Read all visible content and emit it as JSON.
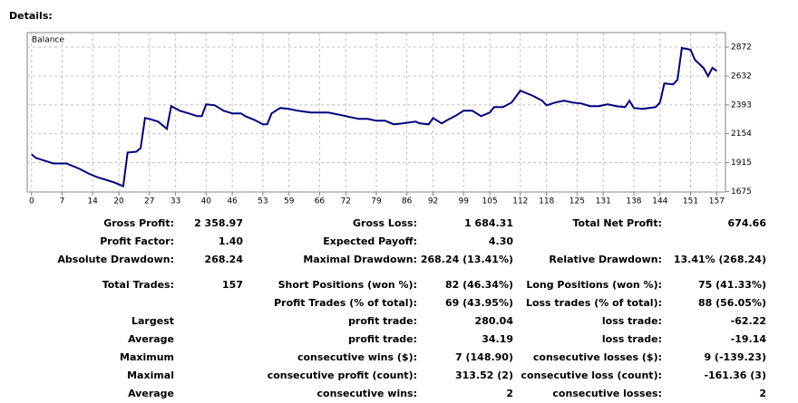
{
  "heading": "Details:",
  "chart_data": {
    "type": "line",
    "title": "Balance",
    "color": "#00007f",
    "grid": true,
    "x": [
      0,
      1,
      5,
      8,
      11,
      13,
      15,
      17,
      19,
      21,
      22,
      24,
      25,
      26,
      27,
      29,
      31,
      32,
      34,
      36,
      38,
      39,
      40,
      42,
      44,
      46,
      48,
      49,
      51,
      53,
      54,
      55,
      57,
      59,
      61,
      64,
      68,
      71,
      73,
      75,
      77,
      79,
      81,
      83,
      85,
      88,
      89,
      91,
      92,
      94,
      95,
      97,
      99,
      101,
      103,
      105,
      106,
      108,
      110,
      112,
      115,
      117,
      118,
      120,
      122,
      124,
      126,
      128,
      130,
      132,
      134,
      136,
      137,
      138,
      140,
      143,
      144,
      145,
      147,
      148,
      149,
      151,
      152,
      154,
      155,
      156,
      157
    ],
    "values": [
      1984,
      1954,
      1908,
      1908,
      1863,
      1826,
      1795,
      1773,
      1750,
      1720,
      1999,
      2006,
      2036,
      2285,
      2277,
      2255,
      2195,
      2383,
      2345,
      2323,
      2300,
      2300,
      2398,
      2390,
      2345,
      2323,
      2323,
      2300,
      2270,
      2232,
      2232,
      2323,
      2368,
      2360,
      2345,
      2330,
      2330,
      2308,
      2292,
      2277,
      2277,
      2262,
      2262,
      2232,
      2240,
      2255,
      2240,
      2232,
      2285,
      2240,
      2262,
      2300,
      2345,
      2345,
      2300,
      2330,
      2375,
      2375,
      2413,
      2511,
      2466,
      2428,
      2390,
      2413,
      2428,
      2413,
      2405,
      2383,
      2383,
      2398,
      2383,
      2375,
      2428,
      2368,
      2360,
      2375,
      2413,
      2571,
      2563,
      2601,
      2865,
      2850,
      2767,
      2699,
      2631,
      2700,
      2675
    ],
    "xlim": [
      -1,
      159
    ],
    "xticks": [
      0,
      7,
      14,
      20,
      27,
      33,
      40,
      46,
      53,
      59,
      66,
      72,
      79,
      86,
      92,
      99,
      105,
      112,
      118,
      125,
      131,
      138,
      144,
      151,
      157
    ],
    "ylim": [
      1672,
      2992
    ],
    "yticks": [
      1675,
      1915,
      2154,
      2393,
      2632,
      2872
    ]
  },
  "stats": {
    "rows": [
      [
        "Gross Profit:",
        "2 358.97",
        "Gross Loss:",
        "1 684.31",
        "Total Net Profit:",
        "674.66"
      ],
      [
        "Profit Factor:",
        "1.40",
        "Expected Payoff:",
        "4.30",
        null,
        null
      ],
      [
        "Absolute Drawdown:",
        "268.24",
        "Maximal Drawdown:",
        "268.24 (13.41%)",
        "Relative Drawdown:",
        "13.41% (268.24)"
      ],
      [
        "Total Trades:",
        "157",
        "Short Positions (won %):",
        "82 (46.34%)",
        "Long Positions (won %):",
        "75 (41.33%)"
      ],
      [
        null,
        null,
        "Profit Trades (% of total):",
        "69 (43.95%)",
        "Loss trades (% of total):",
        "88 (56.05%)"
      ],
      [
        "Largest",
        null,
        "profit trade:",
        "280.04",
        "loss trade:",
        "-62.22"
      ],
      [
        "Average",
        null,
        "profit trade:",
        "34.19",
        "loss trade:",
        "-19.14"
      ],
      [
        "Maximum",
        null,
        "consecutive wins ($):",
        "7 (148.90)",
        "consecutive losses ($):",
        "9 (-139.23)"
      ],
      [
        "Maximal",
        null,
        "consecutive profit (count):",
        "313.52 (2)",
        "consecutive loss (count):",
        "-161.36 (3)"
      ],
      [
        "Average",
        null,
        "consecutive wins:",
        "2",
        "consecutive losses:",
        "2"
      ]
    ]
  }
}
